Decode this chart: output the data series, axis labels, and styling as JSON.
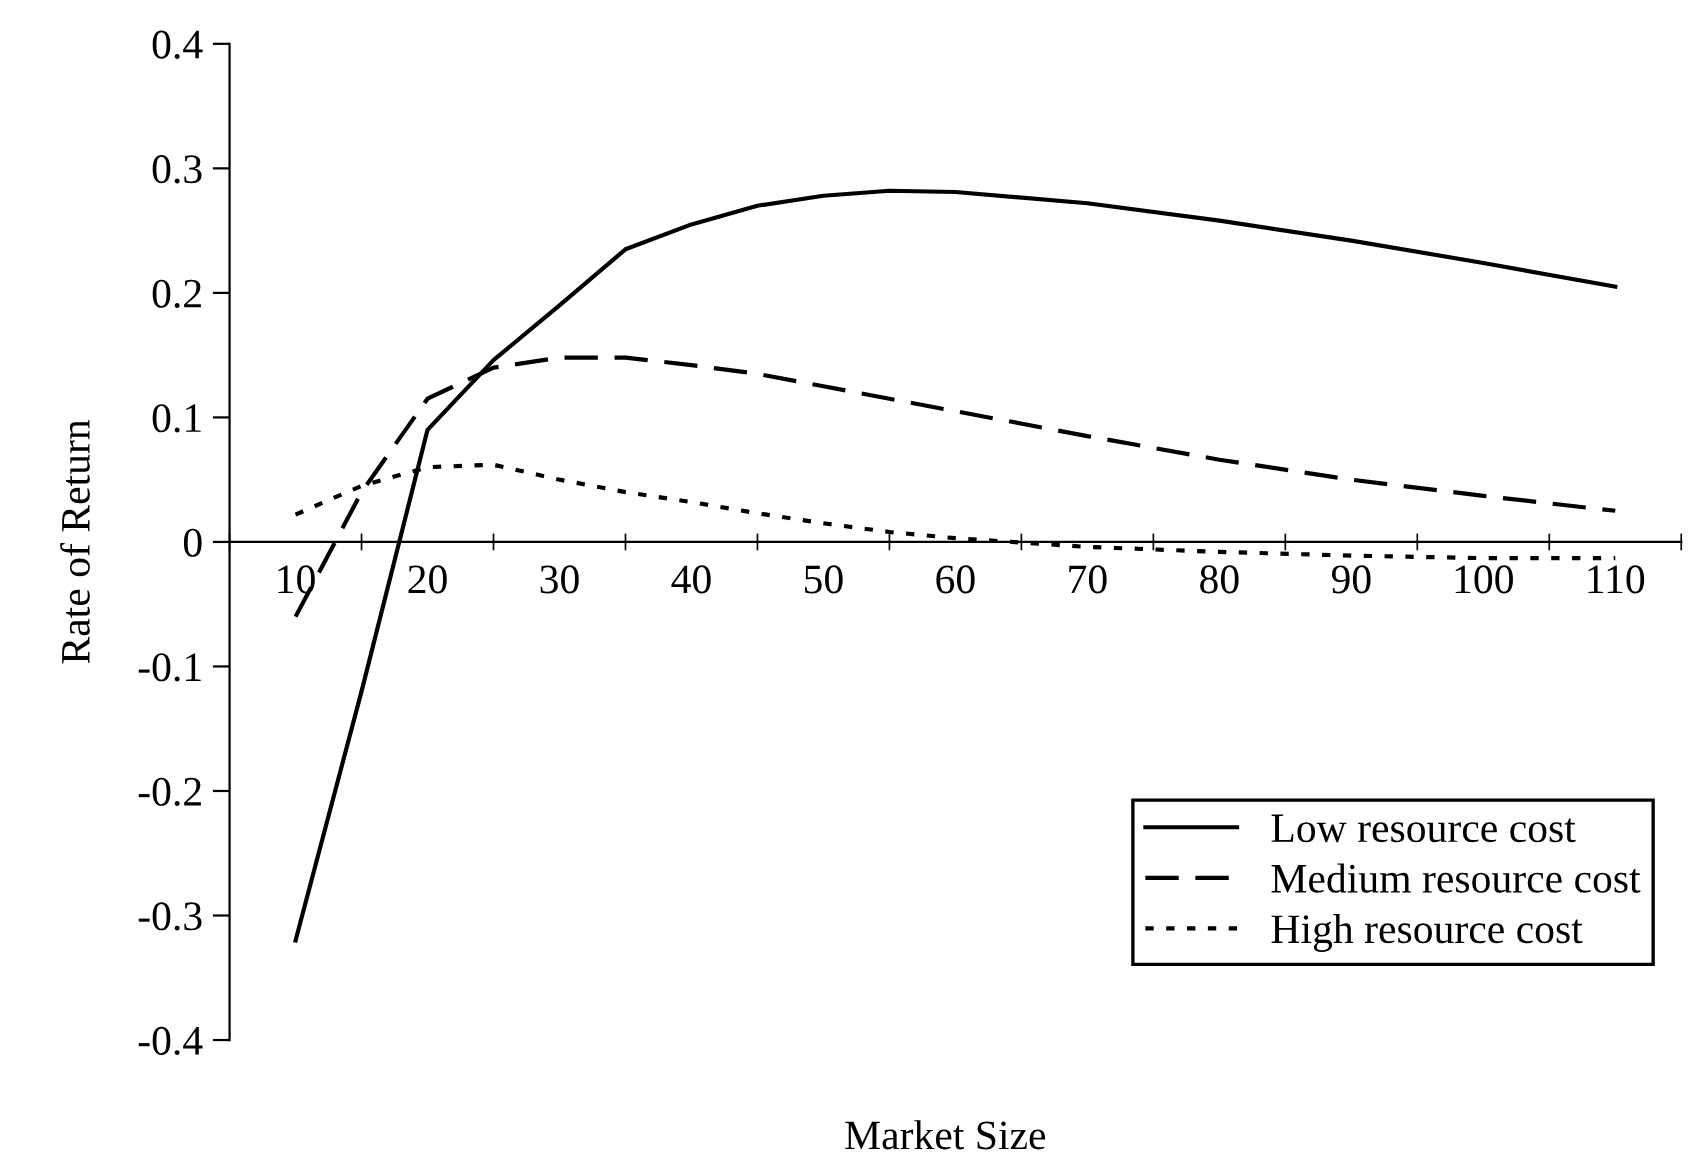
{
  "chart_data": {
    "type": "line",
    "xlabel": "Market Size",
    "ylabel": "Rate of Return",
    "x": [
      10,
      15,
      20,
      25,
      30,
      35,
      40,
      45,
      50,
      55,
      60,
      70,
      80,
      90,
      100,
      110
    ],
    "series": [
      {
        "name": "Low resource cost",
        "color": "#000000",
        "line_style": "solid",
        "values": [
          -0.32,
          -0.12,
          0.09,
          0.146,
          0.19,
          0.235,
          0.255,
          0.27,
          0.278,
          0.282,
          0.281,
          0.272,
          0.258,
          0.242,
          0.224,
          0.205
        ]
      },
      {
        "name": "Medium resource cost",
        "color": "#000000",
        "line_style": "dashed",
        "values": [
          -0.06,
          0.04,
          0.115,
          0.14,
          0.148,
          0.148,
          0.142,
          0.135,
          0.125,
          0.115,
          0.105,
          0.085,
          0.066,
          0.05,
          0.037,
          0.025
        ]
      },
      {
        "name": "High resource cost",
        "color": "#000000",
        "line_style": "dotted",
        "values": [
          0.022,
          0.045,
          0.06,
          0.062,
          0.05,
          0.04,
          0.032,
          0.023,
          0.015,
          0.008,
          0.003,
          -0.004,
          -0.008,
          -0.011,
          -0.013,
          -0.013
        ]
      }
    ],
    "xlim": [
      5,
      115
    ],
    "xticks": [
      {
        "value": 5,
        "label": null
      },
      10,
      {
        "value": 15,
        "label": null
      },
      20,
      {
        "value": 25,
        "label": null
      },
      30,
      {
        "value": 35,
        "label": null
      },
      40,
      {
        "value": 45,
        "label": null
      },
      50,
      {
        "value": 55,
        "label": null
      },
      60,
      {
        "value": 65,
        "label": null
      },
      70,
      {
        "value": 75,
        "label": null
      },
      80,
      {
        "value": 85,
        "label": null
      },
      90,
      {
        "value": 95,
        "label": null
      },
      100,
      {
        "value": 105,
        "label": null
      },
      110,
      {
        "value": 115,
        "label": null
      }
    ],
    "ylim": [
      -0.4,
      0.4
    ],
    "yticks": [
      {
        "value": -0.4,
        "label": "-0.4"
      },
      {
        "value": -0.3,
        "label": "-0.3"
      },
      {
        "value": -0.2,
        "label": "-0.2"
      },
      {
        "value": -0.1,
        "label": "-0.1"
      },
      0,
      0.1,
      0.2,
      0.3,
      0.4
    ],
    "grid": false,
    "legend": "bottom right",
    "marker": "none"
  }
}
